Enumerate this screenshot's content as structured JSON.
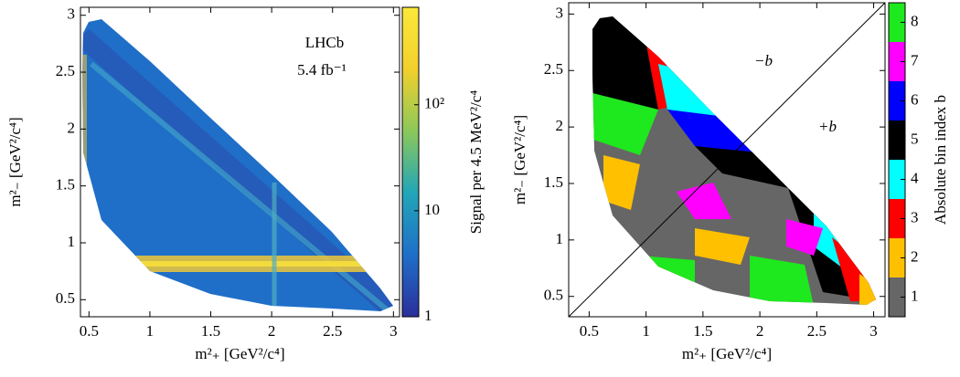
{
  "chart_data": [
    {
      "type": "heatmap",
      "xlabel": "m²₊ [GeV²/c⁴]",
      "ylabel": "m²₋ [GeV²/c⁴]",
      "annotations": [
        "LHCb",
        "5.4 fb⁻¹"
      ],
      "xlim": [
        0.43,
        3.05
      ],
      "ylim": [
        0.35,
        3.07
      ],
      "xticks": [
        0.5,
        1,
        1.5,
        2,
        2.5,
        3
      ],
      "yticks": [
        0.5,
        1,
        1.5,
        2,
        2.5,
        3
      ],
      "colorbar": {
        "label": "Signal per 4.5 MeV²/c⁴",
        "scale": "log",
        "lim": [
          1,
          830
        ],
        "ticks": [
          1,
          10,
          {
            "value": 100,
            "label": "10²"
          }
        ],
        "colormap": [
          "#2b2f9a",
          "#1f6fc8",
          "#22a6b8",
          "#8cc85a",
          "#f2d02c",
          "#fbe83a"
        ]
      }
    },
    {
      "type": "binning",
      "xlabel": "m²₊ [GeV²/c⁴]",
      "ylabel": "m²₋ [GeV²/c⁴]",
      "annotations": [
        "−b",
        "+b"
      ],
      "xlim": [
        0.32,
        3.1
      ],
      "ylim": [
        0.32,
        3.1
      ],
      "xticks": [
        0.5,
        1,
        1.5,
        2,
        2.5,
        3
      ],
      "yticks": [
        0.5,
        1,
        1.5,
        2,
        2.5,
        3
      ],
      "colorbar": {
        "label": "Absolute bin index b",
        "scale": "discrete",
        "lim": [
          0.5,
          8.5
        ],
        "ticks": [
          1,
          2,
          3,
          4,
          5,
          6,
          7,
          8
        ],
        "colors": [
          "#666666",
          "#ffc000",
          "#ff0000",
          "#00ffff",
          "#000000",
          "#0000ff",
          "#ff00ff",
          "#1ee81e"
        ]
      }
    }
  ]
}
